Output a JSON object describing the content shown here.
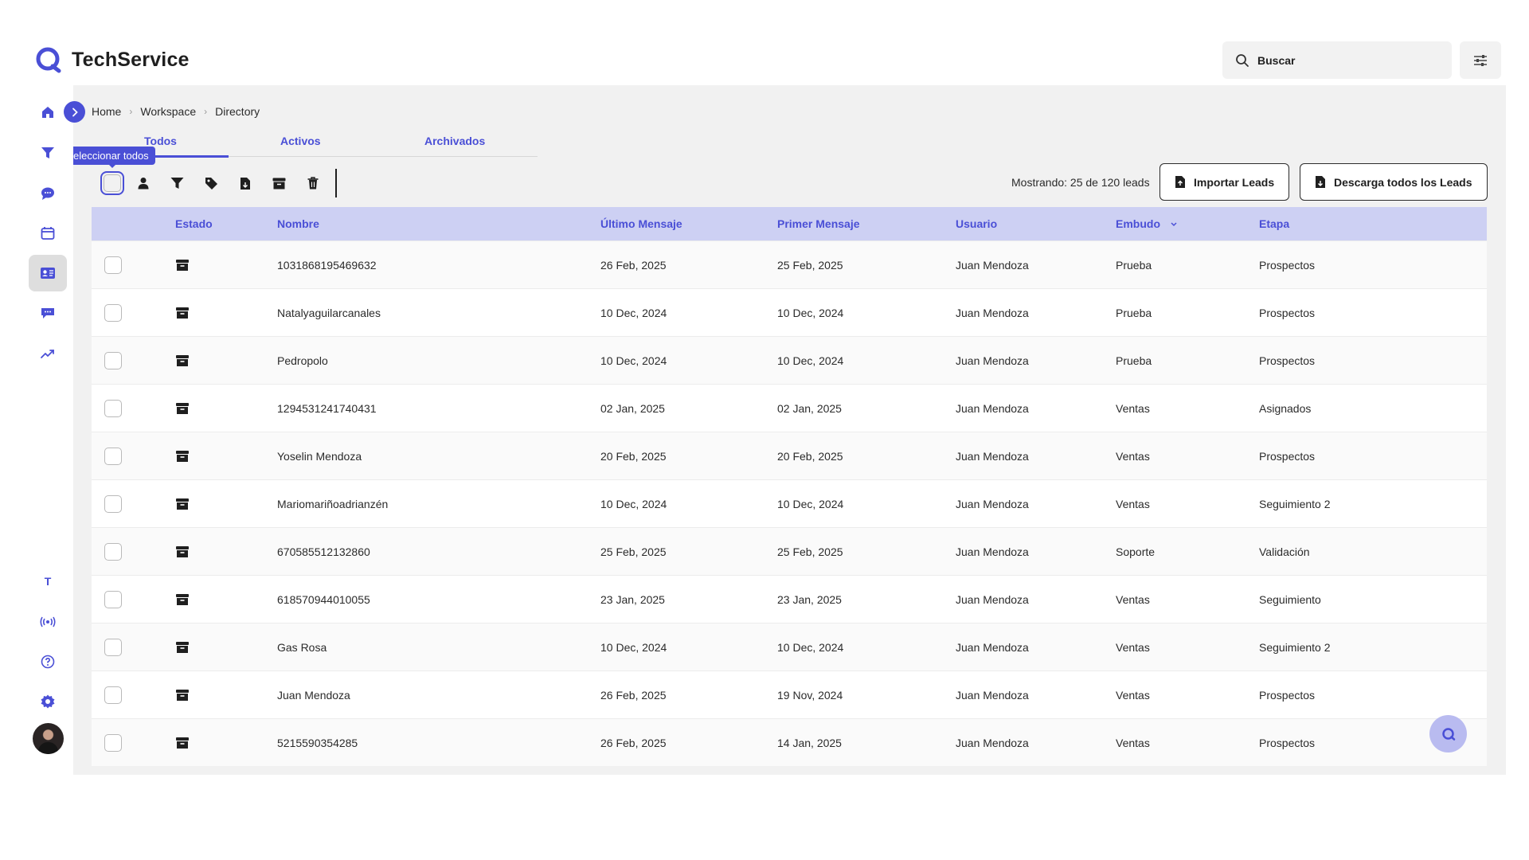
{
  "app": {
    "name": "TechService"
  },
  "search": {
    "placeholder": "Buscar"
  },
  "sidebar": {
    "items": [
      {
        "icon": "home-icon"
      },
      {
        "icon": "funnel-icon"
      },
      {
        "icon": "chat-bubble-icon"
      },
      {
        "icon": "calendar-icon"
      },
      {
        "icon": "contacts-card-icon",
        "active": true
      },
      {
        "icon": "messages-icon"
      },
      {
        "icon": "trend-up-icon"
      },
      {
        "icon": "text-t-icon",
        "label": "T"
      },
      {
        "icon": "broadcast-icon"
      },
      {
        "icon": "help-circle-icon"
      },
      {
        "icon": "gear-icon"
      }
    ]
  },
  "breadcrumb": {
    "items": [
      "Home",
      "Workspace",
      "Directory"
    ]
  },
  "tabs": {
    "all": "Todos",
    "active": "Activos",
    "archived": "Archivados"
  },
  "tooltip": {
    "text": "eleccionar todos"
  },
  "toolbar": {
    "tools": [
      "assign-user-icon",
      "funnel-icon",
      "tag-icon",
      "export-file-icon",
      "archive-icon",
      "trash-icon"
    ]
  },
  "summary": {
    "text": "Mostrando: 25 de 120 leads"
  },
  "buttons": {
    "import": "Importar Leads",
    "download": "Descarga todos los Leads"
  },
  "table": {
    "headers": {
      "estado": "Estado",
      "nombre": "Nombre",
      "ultimo": "Último Mensaje",
      "primero": "Primer Mensaje",
      "usuario": "Usuario",
      "embudo": "Embudo",
      "etapa": "Etapa"
    },
    "rows": [
      {
        "nombre": "1031868195469632",
        "ultimo": "26 Feb, 2025",
        "primero": "25 Feb, 2025",
        "usuario": "Juan Mendoza",
        "embudo": "Prueba",
        "etapa": "Prospectos"
      },
      {
        "nombre": "Natalyaguilarcanales",
        "ultimo": "10 Dec, 2024",
        "primero": "10 Dec, 2024",
        "usuario": "Juan Mendoza",
        "embudo": "Prueba",
        "etapa": "Prospectos"
      },
      {
        "nombre": "Pedropolo",
        "ultimo": "10 Dec, 2024",
        "primero": "10 Dec, 2024",
        "usuario": "Juan Mendoza",
        "embudo": "Prueba",
        "etapa": "Prospectos"
      },
      {
        "nombre": "1294531241740431",
        "ultimo": "02 Jan, 2025",
        "primero": "02 Jan, 2025",
        "usuario": "Juan Mendoza",
        "embudo": "Ventas",
        "etapa": "Asignados"
      },
      {
        "nombre": "Yoselin Mendoza",
        "ultimo": "20 Feb, 2025",
        "primero": "20 Feb, 2025",
        "usuario": "Juan Mendoza",
        "embudo": "Ventas",
        "etapa": "Prospectos"
      },
      {
        "nombre": "Mariomariñoadrianzén",
        "ultimo": "10 Dec, 2024",
        "primero": "10 Dec, 2024",
        "usuario": "Juan Mendoza",
        "embudo": "Ventas",
        "etapa": "Seguimiento 2"
      },
      {
        "nombre": "670585512132860",
        "ultimo": "25 Feb, 2025",
        "primero": "25 Feb, 2025",
        "usuario": "Juan Mendoza",
        "embudo": "Soporte",
        "etapa": "Validación"
      },
      {
        "nombre": "618570944010055",
        "ultimo": "23 Jan, 2025",
        "primero": "23 Jan, 2025",
        "usuario": "Juan Mendoza",
        "embudo": "Ventas",
        "etapa": "Seguimiento"
      },
      {
        "nombre": "Gas Rosa",
        "ultimo": "10 Dec, 2024",
        "primero": "10 Dec, 2024",
        "usuario": "Juan Mendoza",
        "embudo": "Ventas",
        "etapa": "Seguimiento 2"
      },
      {
        "nombre": "Juan Mendoza",
        "ultimo": "26 Feb, 2025",
        "primero": "19 Nov, 2024",
        "usuario": "Juan Mendoza",
        "embudo": "Ventas",
        "etapa": "Prospectos"
      },
      {
        "nombre": "5215590354285",
        "ultimo": "26 Feb, 2025",
        "primero": "14 Jan, 2025",
        "usuario": "Juan Mendoza",
        "embudo": "Ventas",
        "etapa": "Prospectos"
      }
    ]
  },
  "colors": {
    "accent": "#4a4fd6",
    "header_bg": "#cdd0f3",
    "panel_bg": "#f1f1f1"
  }
}
